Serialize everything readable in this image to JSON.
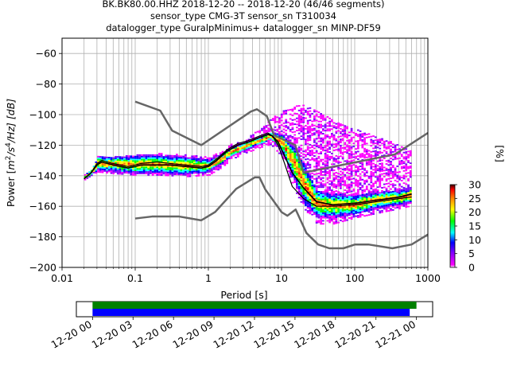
{
  "chart_data": {
    "type": "heatmap",
    "title_lines": [
      "BK.BK80.00.HHZ   2018-12-20 -- 2018-12-20  (46/46 segments)",
      "sensor_type CMG-3T sensor_sn T310034",
      "datalogger_type GuralpMinimus+ datalogger_sn MINP-DF59"
    ],
    "xlabel": "Period [s]",
    "ylabel": "Power [m²/s⁴/Hz] [dB]",
    "ylabel_parts": {
      "main": "Power [",
      "m": "m",
      "exp2": "2",
      "slash_s": "/s",
      "exp4": "4",
      "tail": "/Hz] [dB]"
    },
    "x_scale": "log",
    "xlim": [
      0.01,
      1000
    ],
    "ylim": [
      -200,
      -50
    ],
    "x_ticks": [
      0.01,
      0.1,
      1,
      10,
      100,
      1000
    ],
    "x_tick_labels": [
      "0.01",
      "0.1",
      "1",
      "10",
      "100",
      "1000"
    ],
    "y_ticks": [
      -200,
      -180,
      -160,
      -140,
      -120,
      -100,
      -80,
      -60
    ],
    "y_tick_labels": [
      "−200",
      "−180",
      "−160",
      "−140",
      "−120",
      "−100",
      "−80",
      "−60"
    ],
    "grid": true,
    "colorbar": {
      "label": "[%]",
      "range": [
        0,
        30
      ],
      "ticks": [
        0,
        5,
        10,
        15,
        20,
        25,
        30
      ],
      "tick_labels": [
        "0",
        "5",
        "10",
        "15",
        "20",
        "25",
        "30"
      ],
      "colors": [
        "#ffffff",
        "#ff00ff",
        "#8000ff",
        "#0000ff",
        "#00ffff",
        "#00ff00",
        "#ffff00",
        "#ff8000",
        "#ff0000",
        "#400000"
      ]
    },
    "noise_models": {
      "color": "#666666",
      "high": {
        "x": [
          0.1,
          0.22,
          0.32,
          0.8,
          3.8,
          4.6,
          6.3,
          7.9,
          15.4,
          20,
          354.8,
          1000
        ],
        "y": [
          -91.5,
          -97.4,
          -110.5,
          -120,
          -98,
          -96.5,
          -101,
          -113.5,
          -120,
          -138,
          -126,
          -112
        ]
      },
      "low": {
        "x": [
          0.1,
          0.17,
          0.4,
          0.8,
          1.24,
          2.4,
          4.3,
          5,
          6,
          10,
          12,
          15.6,
          21.9,
          31.6,
          45,
          70,
          101,
          154,
          328,
          600,
          1000
        ],
        "y": [
          -168,
          -166.7,
          -166.7,
          -169.2,
          -163.7,
          -148.6,
          -141.1,
          -141.1,
          -149,
          -163.8,
          -166.2,
          -162.1,
          -177.5,
          -185,
          -187.5,
          -187.5,
          -185,
          -185,
          -187.5,
          -185,
          -178.5
        ]
      }
    },
    "series": [
      {
        "name": "",
        "style": "mode",
        "color": "#000000",
        "x": [
          0.02,
          0.025,
          0.03,
          0.035,
          0.05,
          0.08,
          0.12,
          0.2,
          0.3,
          0.5,
          0.8,
          1.0,
          1.3,
          1.8,
          2.5,
          3.5,
          5,
          6.5,
          7.5,
          9,
          11,
          14,
          20,
          30,
          50,
          100,
          200,
          400,
          600
        ],
        "y": [
          -142,
          -138,
          -133,
          -131,
          -133,
          -135,
          -133,
          -133,
          -133,
          -134,
          -135,
          -134,
          -130,
          -124,
          -120,
          -118,
          -115,
          -113,
          -114,
          -118,
          -127,
          -138,
          -148,
          -157,
          -159,
          -158,
          -156,
          -154,
          -152
        ]
      },
      {
        "name": "",
        "style": "mean",
        "color": "#000000",
        "x": [
          0.02,
          0.025,
          0.03,
          0.035,
          0.05,
          0.08,
          0.12,
          0.2,
          0.3,
          0.5,
          0.8,
          1.0,
          1.3,
          1.8,
          2.5,
          3.5,
          5,
          6.5,
          7.5,
          9,
          11,
          14,
          20,
          30,
          50,
          100,
          200,
          400,
          600
        ],
        "y": [
          -142,
          -138,
          -132,
          -130,
          -132,
          -134,
          -132,
          -131,
          -132,
          -133,
          -134,
          -133,
          -129,
          -123,
          -119,
          -117,
          -114,
          -112,
          -114,
          -120,
          -132,
          -147,
          -155,
          -160,
          -160,
          -159,
          -157,
          -155,
          -154
        ]
      }
    ],
    "density_summary": {
      "description_free": true,
      "core_x": [
        0.02,
        0.025,
        0.03,
        0.05,
        0.1,
        0.2,
        0.5,
        1,
        1.5,
        2,
        3,
        5,
        7,
        10,
        15,
        20,
        30,
        50,
        100,
        200,
        400,
        600
      ],
      "core_upper": [
        -140,
        -136,
        -128,
        -128,
        -127,
        -127,
        -128,
        -130,
        -126,
        -122,
        -119,
        -115,
        -112,
        -113,
        -122,
        -133,
        -150,
        -152,
        -153,
        -151,
        -150,
        -148
      ],
      "core_lower": [
        -143,
        -140,
        -137,
        -138,
        -139,
        -139,
        -140,
        -138,
        -133,
        -128,
        -124,
        -120,
        -117,
        -125,
        -145,
        -160,
        -168,
        -168,
        -166,
        -162,
        -160,
        -158
      ],
      "scatter_upper": [
        -140,
        -136,
        -128,
        -128,
        -127,
        -126,
        -127,
        -128,
        -124,
        -120,
        -117,
        -110,
        -103,
        -98,
        -95,
        -94,
        -98,
        -104,
        -110,
        -115,
        -120,
        -125
      ],
      "scatter_lower": [
        -143,
        -140,
        -138,
        -139,
        -140,
        -140,
        -141,
        -140,
        -135,
        -130,
        -126,
        -122,
        -120,
        -128,
        -150,
        -162,
        -172,
        -172,
        -168,
        -165,
        -162,
        -160
      ]
    }
  },
  "timeline": {
    "start_date": "2018-12-20",
    "tick_labels": [
      "12-20 00",
      "12-20 03",
      "12-20 06",
      "12-20 09",
      "12-20 12",
      "12-20 15",
      "12-20 18",
      "12-20 21",
      "12-21 00"
    ],
    "tick_hours": [
      0,
      3,
      6,
      9,
      12,
      15,
      18,
      21,
      24
    ],
    "range_hours": [
      -1.2,
      25.2
    ],
    "green_bar": {
      "start_hour": 0,
      "end_hour": 24,
      "color": "#008000"
    },
    "blue_bar": {
      "start_hour": 0,
      "end_hour": 23.5,
      "color": "#0000ff"
    }
  }
}
